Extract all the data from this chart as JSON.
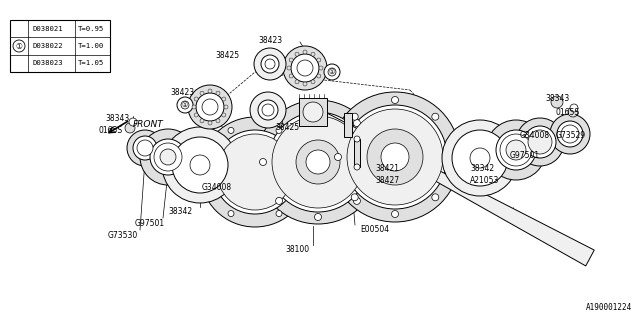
{
  "bg_color": "#ffffff",
  "watermark": "A190001224",
  "legend_rows": [
    {
      "part": "D038021",
      "thickness": "T=0.95"
    },
    {
      "part": "D038022",
      "thickness": "T=1.00"
    },
    {
      "part": "D038023",
      "thickness": "T=1.05"
    }
  ]
}
